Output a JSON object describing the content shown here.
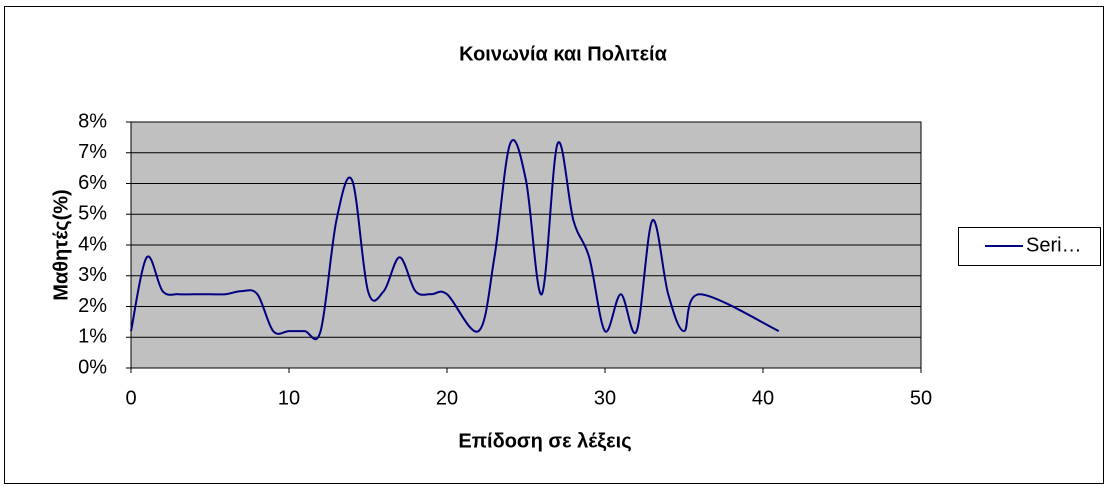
{
  "chart_data": {
    "type": "line",
    "title": "Κοινωνία  και Πολιτεία",
    "x_label": "Επίδοση σε λέξεις",
    "y_label": "Μαθητές(%)",
    "x": [
      0,
      1,
      2,
      3,
      4,
      5,
      6,
      7,
      8,
      9,
      10,
      11,
      12,
      13,
      14,
      15,
      16,
      17,
      18,
      19,
      20,
      22,
      23,
      24,
      25,
      26,
      27,
      28,
      29,
      30,
      31,
      32,
      33,
      34,
      35,
      36,
      41
    ],
    "series": [
      {
        "name": "Seri…",
        "color": "#000080",
        "values": [
          1.2,
          3.6,
          2.5,
          2.4,
          2.4,
          2.4,
          2.4,
          2.5,
          2.4,
          1.2,
          1.2,
          1.2,
          1.2,
          4.8,
          6.1,
          2.5,
          2.5,
          3.6,
          2.5,
          2.4,
          2.4,
          1.2,
          3.6,
          7.3,
          6.1,
          2.4,
          7.3,
          4.8,
          3.6,
          1.2,
          2.4,
          1.2,
          4.8,
          2.4,
          1.2,
          2.4,
          1.2
        ]
      }
    ],
    "xlim": [
      0,
      50
    ],
    "xticks": [
      0,
      10,
      20,
      30,
      40,
      50
    ],
    "ylim": [
      0,
      8
    ],
    "yticks": [
      {
        "value": 0,
        "label": "0%"
      },
      {
        "value": 1,
        "label": "1%"
      },
      {
        "value": 2,
        "label": "2%"
      },
      {
        "value": 3,
        "label": "3%"
      },
      {
        "value": 4,
        "label": "4%"
      },
      {
        "value": 5,
        "label": "5%"
      },
      {
        "value": 6,
        "label": "6%"
      },
      {
        "value": 7,
        "label": "7%"
      },
      {
        "value": 8,
        "label": "8%"
      }
    ],
    "grid": true,
    "legend": "right",
    "plot_background": "#c0c0c0"
  }
}
